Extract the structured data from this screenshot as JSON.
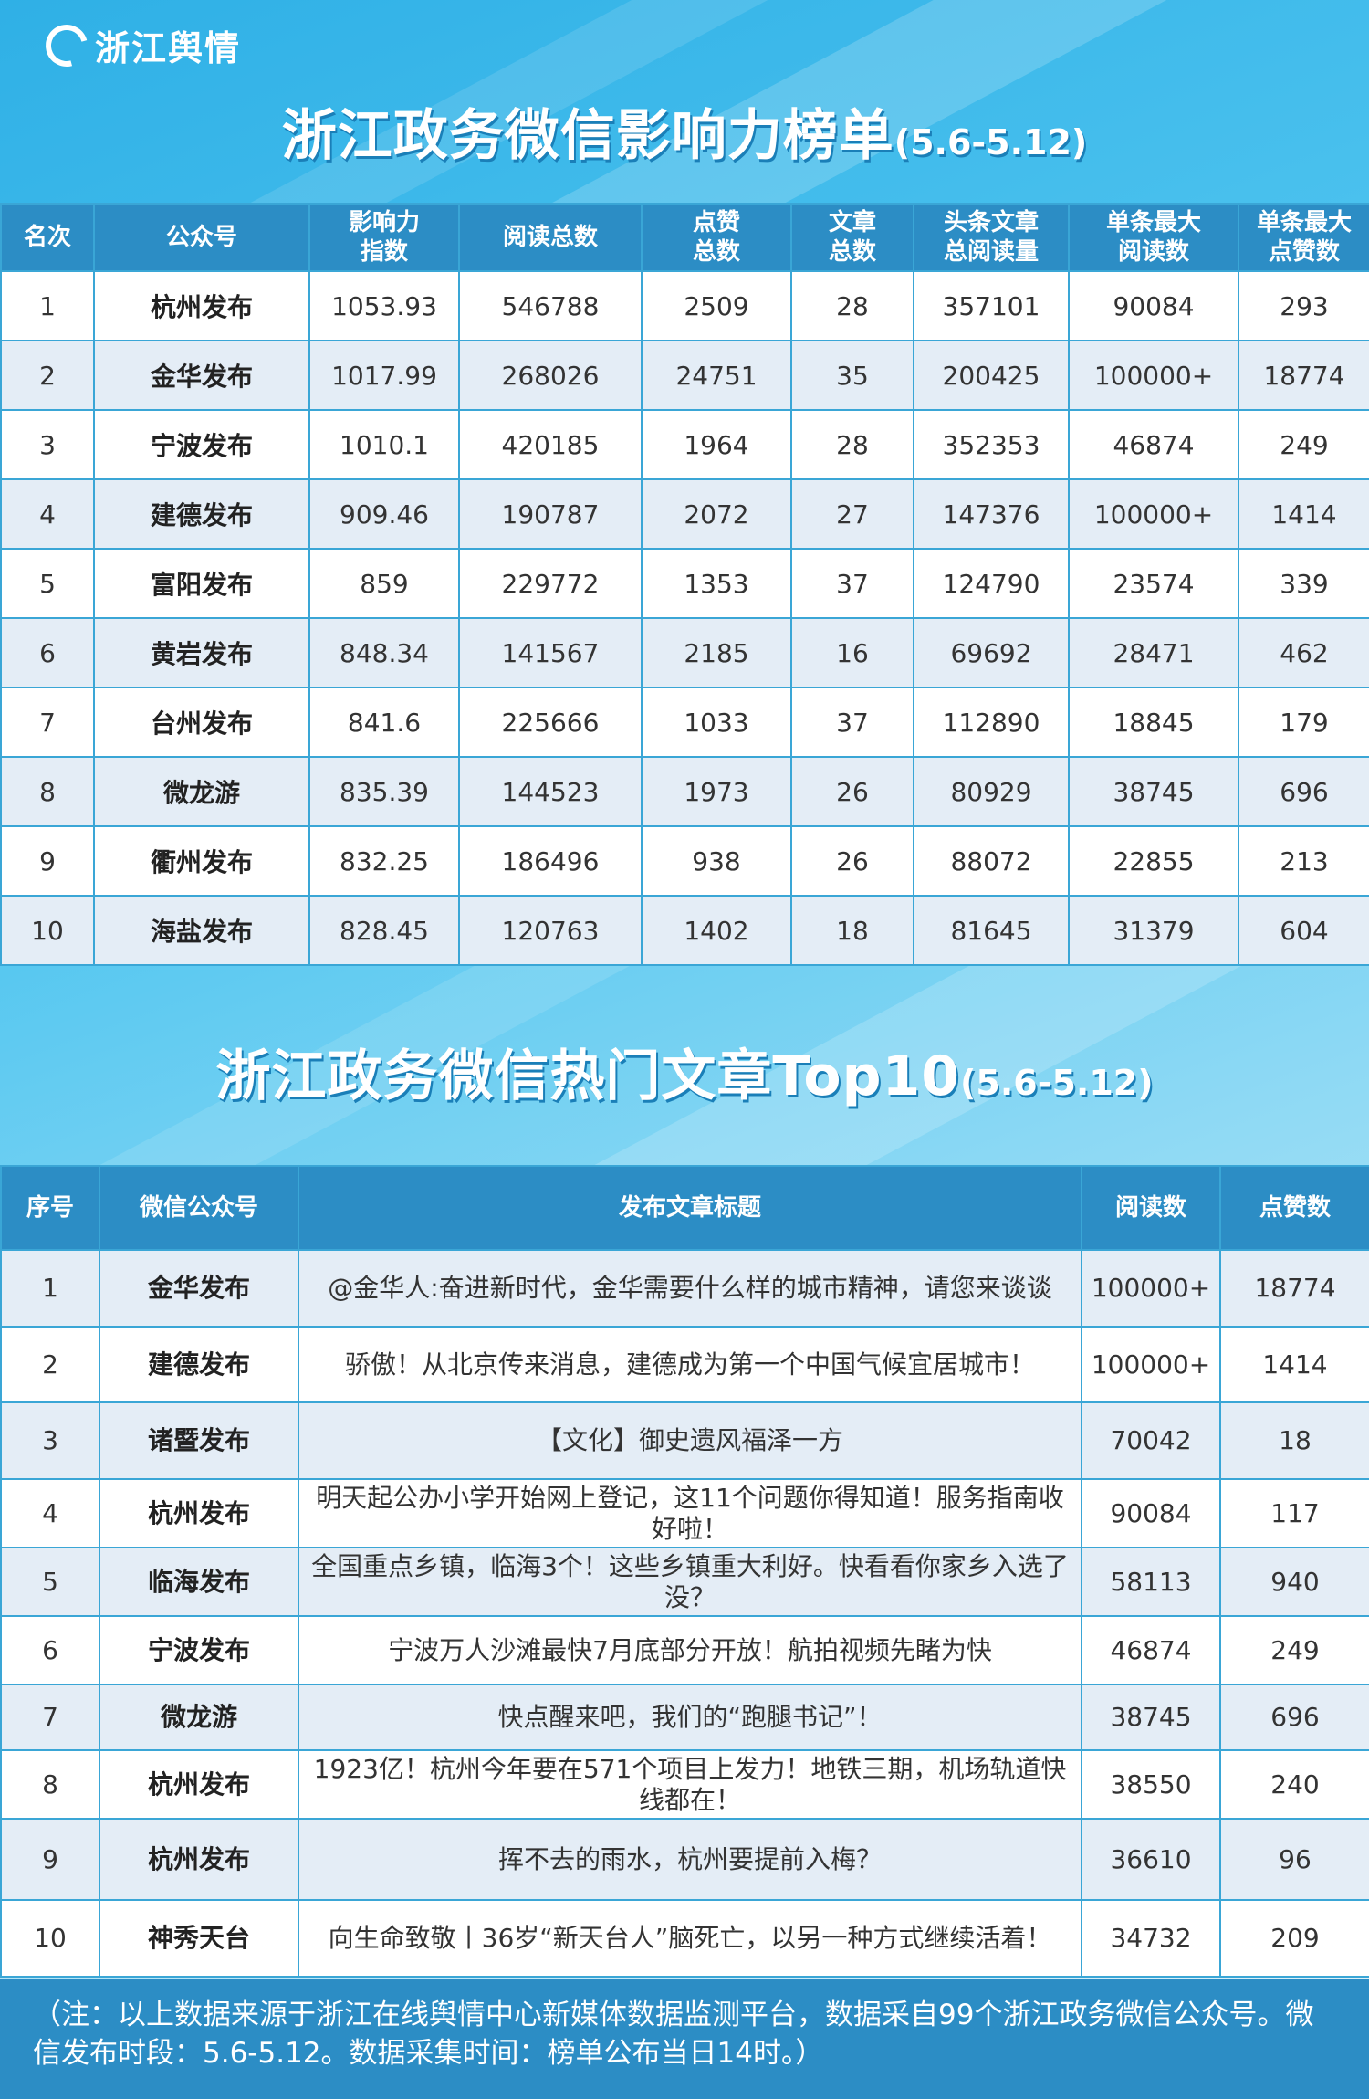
{
  "logo": {
    "text": "浙江舆情"
  },
  "title1": {
    "main": "浙江政务微信影响力榜单",
    "date": "(5.6-5.12)"
  },
  "table1": {
    "headers": [
      "名次",
      "公众号",
      "影响力\n指数",
      "阅读总数",
      "点赞\n总数",
      "文章\n总数",
      "头条文章\n总阅读量",
      "单条最大\n阅读数",
      "单条最大\n点赞数"
    ],
    "rows": [
      [
        "1",
        "杭州发布",
        "1053.93",
        "546788",
        "2509",
        "28",
        "357101",
        "90084",
        "293"
      ],
      [
        "2",
        "金华发布",
        "1017.99",
        "268026",
        "24751",
        "35",
        "200425",
        "100000+",
        "18774"
      ],
      [
        "3",
        "宁波发布",
        "1010.1",
        "420185",
        "1964",
        "28",
        "352353",
        "46874",
        "249"
      ],
      [
        "4",
        "建德发布",
        "909.46",
        "190787",
        "2072",
        "27",
        "147376",
        "100000+",
        "1414"
      ],
      [
        "5",
        "富阳发布",
        "859",
        "229772",
        "1353",
        "37",
        "124790",
        "23574",
        "339"
      ],
      [
        "6",
        "黄岩发布",
        "848.34",
        "141567",
        "2185",
        "16",
        "69692",
        "28471",
        "462"
      ],
      [
        "7",
        "台州发布",
        "841.6",
        "225666",
        "1033",
        "37",
        "112890",
        "18845",
        "179"
      ],
      [
        "8",
        "微龙游",
        "835.39",
        "144523",
        "1973",
        "26",
        "80929",
        "38745",
        "696"
      ],
      [
        "9",
        "衢州发布",
        "832.25",
        "186496",
        "938",
        "26",
        "88072",
        "22855",
        "213"
      ],
      [
        "10",
        "海盐发布",
        "828.45",
        "120763",
        "1402",
        "18",
        "81645",
        "31379",
        "604"
      ]
    ]
  },
  "title2": {
    "main": "浙江政务微信热门文章Top10",
    "date": "(5.6-5.12)"
  },
  "table2": {
    "headers": [
      "序号",
      "微信公众号",
      "发布文章标题",
      "阅读数",
      "点赞数"
    ],
    "rows": [
      [
        "1",
        "金华发布",
        "@金华人:奋进新时代，金华需要什么样的城市精神，请您来谈谈",
        "100000+",
        "18774"
      ],
      [
        "2",
        "建德发布",
        "骄傲！从北京传来消息，建德成为第一个中国气候宜居城市！",
        "100000+",
        "1414"
      ],
      [
        "3",
        "诸暨发布",
        "【文化】御史遗风福泽一方",
        "70042",
        "18"
      ],
      [
        "4",
        "杭州发布",
        "明天起公办小学开始网上登记，这11个问题你得知道！服务指南收好啦！",
        "90084",
        "117"
      ],
      [
        "5",
        "临海发布",
        "全国重点乡镇，临海3个！这些乡镇重大利好。快看看你家乡入选了没？",
        "58113",
        "940"
      ],
      [
        "6",
        "宁波发布",
        "宁波万人沙滩最快7月底部分开放！航拍视频先睹为快",
        "46874",
        "249"
      ],
      [
        "7",
        "微龙游",
        "快点醒来吧，我们的“跑腿书记”！",
        "38745",
        "696"
      ],
      [
        "8",
        "杭州发布",
        "1923亿！杭州今年要在571个项目上发力！地铁三期，机场轨道快线都在！",
        "38550",
        "240"
      ],
      [
        "9",
        "杭州发布",
        "挥不去的雨水，杭州要提前入梅？",
        "36610",
        "96"
      ],
      [
        "10",
        "神秀天台",
        "向生命致敬丨36岁“新天台人”脑死亡，以另一种方式继续活着！",
        "34732",
        "209"
      ]
    ]
  },
  "footer": {
    "text": "（注：以上数据来源于浙江在线舆情中心新媒体数据监测平台，数据采自99个浙江政务微信公众号。微信发布时段：5.6-5.12。数据采集时间：榜单公布当日14时。）"
  }
}
